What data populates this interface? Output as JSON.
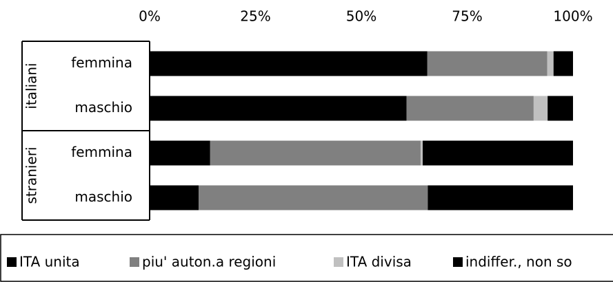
{
  "chart_data": {
    "type": "stacked-barh",
    "groups": [
      {
        "name": "italiani",
        "categories": [
          "femmina",
          "maschio"
        ]
      },
      {
        "name": "stranieri",
        "categories": [
          "femmina",
          "maschio"
        ]
      }
    ],
    "series": [
      {
        "name": "ITA unita",
        "color": "#000000",
        "values": [
          65.6,
          60.7,
          14.3,
          11.6
        ]
      },
      {
        "name": "piu' auton.a regioni",
        "color": "#808080",
        "values": [
          28.3,
          30.0,
          49.7,
          54.1
        ]
      },
      {
        "name": "ITA divisa",
        "color": "#c0c0c0",
        "values": [
          1.5,
          3.3,
          0.5,
          0
        ]
      },
      {
        "name": "indiffer., non so",
        "color": "#000000",
        "values": [
          4.6,
          6.0,
          35.5,
          34.3
        ]
      }
    ],
    "xlim": [
      0,
      100
    ],
    "xticks": [
      {
        "value": 0,
        "label": "0%"
      },
      {
        "value": 25,
        "label": "25%"
      },
      {
        "value": 50,
        "label": "50%"
      },
      {
        "value": 75,
        "label": "75%"
      },
      {
        "value": 100,
        "label": "100%"
      }
    ],
    "legend": "bottom"
  }
}
